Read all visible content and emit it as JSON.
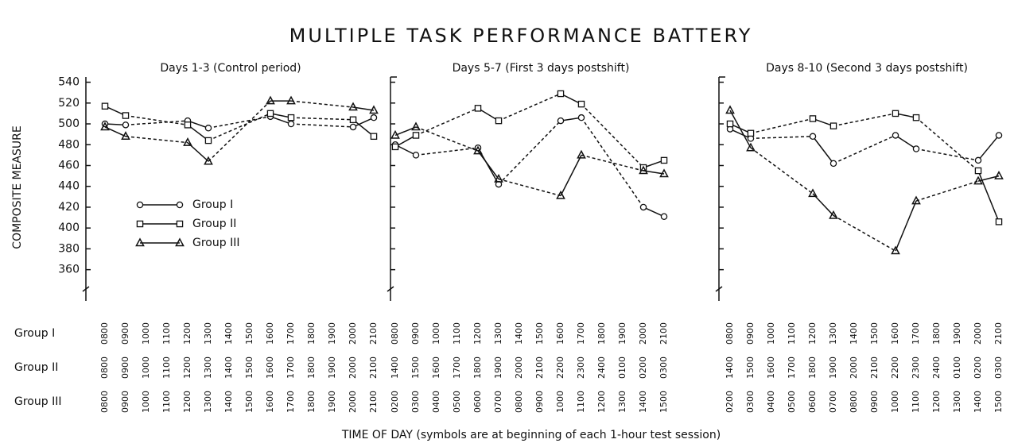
{
  "title": "MULTIPLE TASK PERFORMANCE BATTERY",
  "y_label": "COMPOSITE MEASURE",
  "x_label": "TIME OF DAY (symbols are at beginning of each 1-hour test session)",
  "row_labels": [
    "Group I",
    "Group II",
    "Group III"
  ],
  "chart_data": [
    {
      "type": "line",
      "title": "Days 1-3 (Control period)",
      "time_rows": [
        [
          "0800",
          "0900",
          "1000",
          "1100",
          "1200",
          "1300",
          "1400",
          "1500",
          "1600",
          "1700",
          "1800",
          "1900",
          "2000",
          "2100"
        ],
        [
          "0800",
          "0900",
          "1000",
          "1100",
          "1200",
          "1300",
          "1400",
          "1500",
          "1600",
          "1700",
          "1800",
          "1900",
          "2000",
          "2100"
        ],
        [
          "0800",
          "0900",
          "1000",
          "1100",
          "1200",
          "1300",
          "1400",
          "1500",
          "1600",
          "1700",
          "1800",
          "1900",
          "2000",
          "2100"
        ]
      ],
      "ylim": [
        330,
        545
      ],
      "yticks": [
        360,
        380,
        400,
        420,
        440,
        460,
        480,
        500,
        520,
        540
      ],
      "show_tick_labels": true,
      "series": [
        {
          "name": "Group I",
          "marker": "circle",
          "color": "#111111",
          "values": [
            500,
            499,
            null,
            null,
            503,
            496,
            null,
            null,
            507,
            500,
            null,
            null,
            497,
            506
          ]
        },
        {
          "name": "Group II",
          "marker": "square",
          "color": "#111111",
          "values": [
            517,
            508,
            null,
            null,
            499,
            484,
            null,
            null,
            510,
            506,
            null,
            null,
            504,
            488
          ]
        },
        {
          "name": "Group III",
          "marker": "triangle",
          "color": "#111111",
          "values": [
            497,
            488,
            null,
            null,
            482,
            464,
            null,
            null,
            522,
            522,
            null,
            null,
            516,
            513
          ]
        }
      ]
    },
    {
      "type": "line",
      "title": "Days 5-7 (First 3 days postshift)",
      "time_rows": [
        [
          "0800",
          "0900",
          "1000",
          "1100",
          "1200",
          "1300",
          "1400",
          "1500",
          "1600",
          "1700",
          "1800",
          "1900",
          "2000",
          "2100"
        ],
        [
          "1400",
          "1500",
          "1600",
          "1700",
          "1800",
          "1900",
          "2000",
          "2100",
          "2200",
          "2300",
          "2400",
          "0100",
          "0200",
          "0300"
        ],
        [
          "0200",
          "0300",
          "0400",
          "0500",
          "0600",
          "0700",
          "0800",
          "0900",
          "1000",
          "1100",
          "1200",
          "1300",
          "1400",
          "1500"
        ]
      ],
      "ylim": [
        330,
        545
      ],
      "yticks": [
        360,
        380,
        400,
        420,
        440,
        460,
        480,
        500,
        520,
        540
      ],
      "show_tick_labels": false,
      "series": [
        {
          "name": "Group I",
          "marker": "circle",
          "color": "#111111",
          "values": [
            480,
            470,
            null,
            null,
            477,
            442,
            null,
            null,
            503,
            506,
            null,
            null,
            420,
            411
          ]
        },
        {
          "name": "Group II",
          "marker": "square",
          "color": "#111111",
          "values": [
            478,
            489,
            null,
            null,
            515,
            503,
            null,
            null,
            529,
            519,
            null,
            null,
            458,
            465
          ]
        },
        {
          "name": "Group III",
          "marker": "triangle",
          "color": "#111111",
          "values": [
            489,
            497,
            null,
            null,
            474,
            447,
            null,
            null,
            431,
            470,
            null,
            null,
            455,
            452
          ]
        }
      ]
    },
    {
      "type": "line",
      "title": "Days 8-10 (Second 3 days postshift)",
      "time_rows": [
        [
          "0800",
          "0900",
          "1000",
          "1100",
          "1200",
          "1300",
          "1400",
          "1500",
          "1600",
          "1700",
          "1800",
          "1900",
          "2000",
          "2100"
        ],
        [
          "1400",
          "1500",
          "1600",
          "1700",
          "1800",
          "1900",
          "2000",
          "2100",
          "2200",
          "2300",
          "2400",
          "0100",
          "0200",
          "0300"
        ],
        [
          "0200",
          "0300",
          "0400",
          "0500",
          "0600",
          "0700",
          "0800",
          "0900",
          "1000",
          "1100",
          "1200",
          "1300",
          "1400",
          "1500"
        ]
      ],
      "ylim": [
        330,
        545
      ],
      "yticks": [
        360,
        380,
        400,
        420,
        440,
        460,
        480,
        500,
        520,
        540
      ],
      "show_tick_labels": false,
      "series": [
        {
          "name": "Group I",
          "marker": "circle",
          "color": "#111111",
          "values": [
            495,
            486,
            null,
            null,
            488,
            462,
            null,
            null,
            489,
            476,
            null,
            null,
            465,
            489
          ]
        },
        {
          "name": "Group II",
          "marker": "square",
          "color": "#111111",
          "values": [
            500,
            491,
            null,
            null,
            505,
            498,
            null,
            null,
            510,
            506,
            null,
            null,
            455,
            406
          ]
        },
        {
          "name": "Group III",
          "marker": "triangle",
          "color": "#111111",
          "values": [
            513,
            477,
            null,
            null,
            433,
            412,
            null,
            null,
            378,
            426,
            null,
            null,
            445,
            450
          ]
        }
      ]
    }
  ]
}
